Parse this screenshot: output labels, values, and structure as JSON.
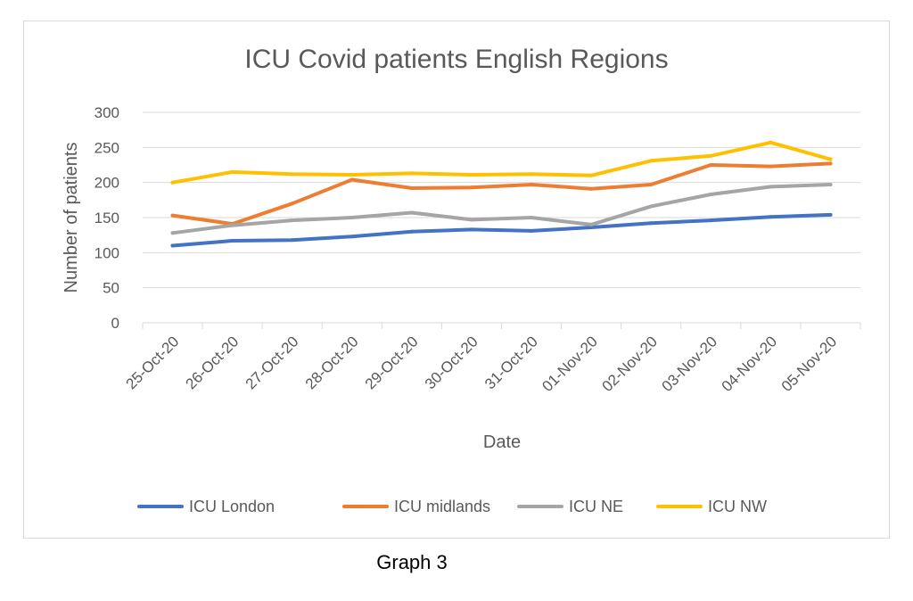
{
  "chart_data": {
    "type": "line",
    "title": "ICU Covid patients English Regions",
    "xlabel": "Date",
    "ylabel": "Number of patients",
    "ylim": [
      0,
      300
    ],
    "yticks": [
      0,
      50,
      100,
      150,
      200,
      250,
      300
    ],
    "grid": "horizontal",
    "legend_position": "bottom",
    "categories": [
      "25-Oct-20",
      "26-Oct-20",
      "27-Oct-20",
      "28-Oct-20",
      "29-Oct-20",
      "30-Oct-20",
      "31-Oct-20",
      "01-Nov-20",
      "02-Nov-20",
      "03-Nov-20",
      "04-Nov-20",
      "05-Nov-20"
    ],
    "series": [
      {
        "name": "ICU London",
        "color": "#4472c4",
        "values": [
          110,
          117,
          118,
          123,
          130,
          133,
          131,
          136,
          142,
          146,
          151,
          154
        ]
      },
      {
        "name": "ICU midlands",
        "color": "#ed7d31",
        "values": [
          153,
          141,
          170,
          204,
          192,
          193,
          197,
          191,
          197,
          225,
          223,
          227
        ]
      },
      {
        "name": "ICU NE",
        "color": "#a5a5a5",
        "values": [
          128,
          139,
          146,
          150,
          157,
          147,
          150,
          140,
          166,
          183,
          194,
          197
        ]
      },
      {
        "name": "ICU NW",
        "color": "#ffc000",
        "values": [
          200,
          215,
          212,
          211,
          213,
          211,
          212,
          210,
          231,
          238,
          257,
          233
        ]
      }
    ]
  },
  "caption": "Graph 3"
}
